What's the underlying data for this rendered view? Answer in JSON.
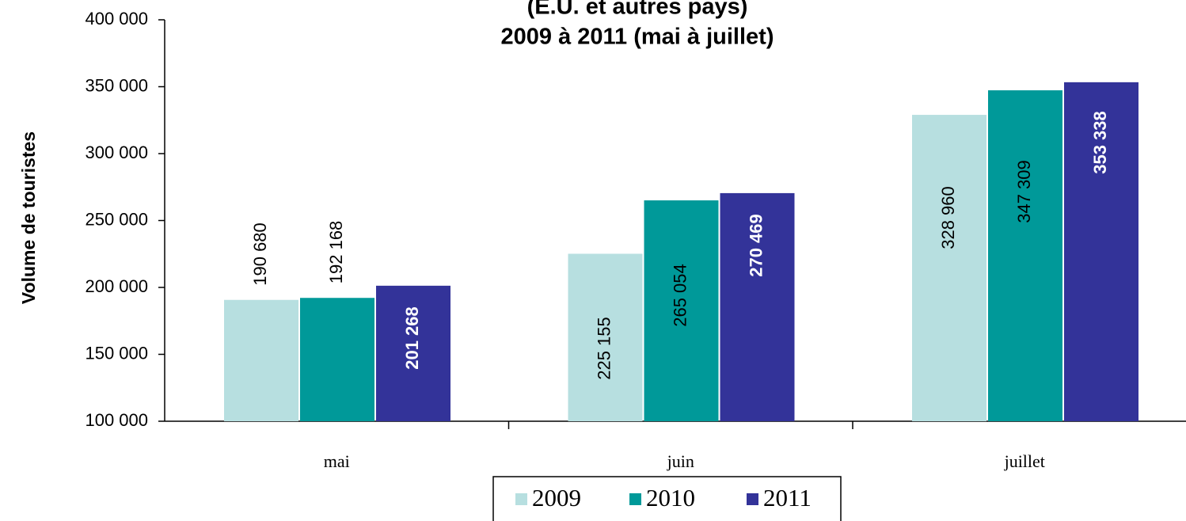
{
  "chart_data": {
    "type": "bar",
    "title": [
      "(É.U. et autres pays)",
      "2009 à 2011 (mai à juillet)"
    ],
    "y_label": "Volume de touristes",
    "categories": [
      "mai",
      "juin",
      "juillet"
    ],
    "series": [
      {
        "name": "2009",
        "color": "#b7dfe0",
        "values": [
          190680,
          225155,
          328960
        ],
        "value_labels": [
          "190 680",
          "225 155",
          "328 960"
        ]
      },
      {
        "name": "2010",
        "color": "#009999",
        "values": [
          192168,
          265054,
          347309
        ],
        "value_labels": [
          "192 168",
          "265 054",
          "347 309"
        ]
      },
      {
        "name": "2011",
        "color": "#333399",
        "values": [
          201268,
          270469,
          353338
        ],
        "value_labels": [
          "201 268",
          "270 469",
          "353 338"
        ]
      }
    ],
    "ylim": [
      100000,
      400000
    ],
    "yticks": [
      {
        "value": 100000,
        "label": "100 000"
      },
      {
        "value": 150000,
        "label": "150 000"
      },
      {
        "value": 200000,
        "label": "200 000"
      },
      {
        "value": 250000,
        "label": "250 000"
      },
      {
        "value": 300000,
        "label": "300 000"
      },
      {
        "value": 350000,
        "label": "350 000"
      },
      {
        "value": 400000,
        "label": "400 000"
      }
    ],
    "grid": false,
    "legend": "bottom"
  }
}
